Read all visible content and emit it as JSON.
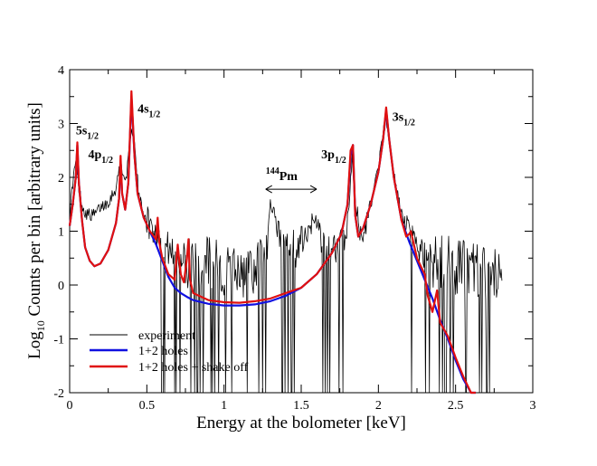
{
  "chart_data": {
    "type": "line",
    "title": "",
    "xlabel": "Energy at the bolometer [keV]",
    "ylabel": {
      "prefix": "Log",
      "sub": "10",
      "rest": " Counts per bin [arbitrary units]"
    },
    "xlim": [
      0,
      3
    ],
    "ylim": [
      -2,
      4
    ],
    "xticks": [
      0,
      0.5,
      1,
      1.5,
      2,
      2.5,
      3
    ],
    "xtick_labels": [
      "0",
      "0.5",
      "1",
      "1.5",
      "2",
      "2.5",
      "3"
    ],
    "yticks": [
      -2,
      -1,
      0,
      1,
      2,
      3,
      4
    ],
    "ytick_labels": [
      "-2",
      "-1",
      "0",
      "1",
      "2",
      "3",
      "4"
    ],
    "grid": false,
    "legend_position": "bottom-left",
    "annotations": [
      {
        "id": "5s12",
        "main": "5s",
        "sub": "1/2",
        "x": 0.04,
        "y": 2.8
      },
      {
        "id": "4p12",
        "main": "4p",
        "sub": "1/2",
        "x": 0.12,
        "y": 2.35
      },
      {
        "id": "4s12",
        "main": "4s",
        "sub": "1/2",
        "x": 0.44,
        "y": 3.2
      },
      {
        "id": "3p12",
        "main": "3p",
        "sub": "1/2",
        "x": 1.63,
        "y": 2.35
      },
      {
        "id": "3s12",
        "main": "3s",
        "sub": "1/2",
        "x": 2.09,
        "y": 3.05
      },
      {
        "id": "pm144",
        "main": "Pm",
        "sup": "144",
        "x": 1.27,
        "y": 1.95,
        "arrow_from": 1.27,
        "arrow_to": 1.6,
        "arrow_y": 1.78
      }
    ],
    "series": [
      {
        "name": "experiment",
        "color": "#000000",
        "style": "noisy-histogram",
        "x": [
          0.0,
          0.02,
          0.04,
          0.06,
          0.08,
          0.1,
          0.13,
          0.16,
          0.2,
          0.25,
          0.3,
          0.33,
          0.36,
          0.38,
          0.4,
          0.42,
          0.45,
          0.5,
          0.55,
          0.6,
          0.65,
          0.7,
          0.75,
          0.8,
          0.85,
          0.9,
          0.95,
          1.0,
          1.05,
          1.1,
          1.15,
          1.2,
          1.25,
          1.28,
          1.3,
          1.33,
          1.36,
          1.4,
          1.45,
          1.5,
          1.55,
          1.58,
          1.62,
          1.66,
          1.7,
          1.74,
          1.78,
          1.81,
          1.83,
          1.86,
          1.9,
          1.95,
          2.0,
          2.03,
          2.05,
          2.08,
          2.12,
          2.16,
          2.2,
          2.25,
          2.3,
          2.35,
          2.4,
          2.45,
          2.5,
          2.55,
          2.6,
          2.65,
          2.7,
          2.75,
          2.8
        ],
        "values": [
          1.3,
          1.9,
          2.3,
          1.8,
          1.5,
          1.35,
          1.3,
          1.3,
          1.45,
          1.55,
          1.8,
          2.3,
          1.9,
          2.3,
          3.0,
          2.6,
          1.6,
          1.2,
          1.0,
          0.8,
          0.65,
          0.55,
          0.5,
          0.45,
          0.4,
          0.35,
          0.3,
          0.2,
          0.15,
          0.2,
          0.25,
          0.3,
          0.45,
          0.7,
          1.55,
          1.3,
          0.9,
          0.7,
          0.5,
          0.8,
          1.1,
          1.3,
          0.9,
          0.7,
          0.6,
          0.7,
          0.9,
          1.4,
          2.4,
          1.2,
          1.0,
          1.5,
          2.2,
          2.8,
          3.15,
          2.4,
          1.7,
          1.2,
          0.9,
          0.7,
          0.6,
          0.5,
          0.45,
          0.4,
          0.35,
          0.3,
          0.3,
          0.25,
          0.2,
          0.25,
          0.3
        ]
      },
      {
        "name": "1+2 holes",
        "color": "#1010e0",
        "style": "line",
        "x": [
          0.0,
          0.02,
          0.04,
          0.05,
          0.06,
          0.08,
          0.1,
          0.13,
          0.16,
          0.2,
          0.25,
          0.3,
          0.32,
          0.33,
          0.34,
          0.36,
          0.38,
          0.4,
          0.42,
          0.44,
          0.48,
          0.52,
          0.56,
          0.6,
          0.64,
          0.68,
          0.72,
          0.76,
          0.8,
          0.9,
          1.0,
          1.1,
          1.2,
          1.3,
          1.4,
          1.5,
          1.6,
          1.7,
          1.76,
          1.8,
          1.82,
          1.835,
          1.85,
          1.87,
          1.9,
          1.95,
          2.0,
          2.03,
          2.05,
          2.07,
          2.1,
          2.15,
          2.2,
          2.25,
          2.3,
          2.35,
          2.4,
          2.45,
          2.5,
          2.55,
          2.6,
          2.63
        ],
        "values": [
          1.1,
          1.5,
          2.0,
          2.6,
          1.9,
          1.2,
          0.7,
          0.45,
          0.35,
          0.4,
          0.65,
          1.15,
          1.6,
          2.3,
          1.7,
          1.4,
          1.9,
          3.5,
          2.4,
          1.7,
          1.25,
          1.0,
          0.75,
          0.45,
          0.15,
          -0.05,
          -0.15,
          -0.22,
          -0.28,
          -0.35,
          -0.38,
          -0.38,
          -0.36,
          -0.3,
          -0.2,
          -0.05,
          0.2,
          0.6,
          0.95,
          1.5,
          2.4,
          2.6,
          1.3,
          0.9,
          1.05,
          1.5,
          2.1,
          2.7,
          3.25,
          2.7,
          2.0,
          1.2,
          0.8,
          0.45,
          0.1,
          -0.25,
          -0.65,
          -1.0,
          -1.4,
          -1.75,
          -2.0,
          -2.0
        ]
      },
      {
        "name": "1+2 holes + shake off",
        "color": "#e01010",
        "style": "line",
        "x": [
          0.0,
          0.02,
          0.04,
          0.05,
          0.06,
          0.08,
          0.1,
          0.13,
          0.16,
          0.2,
          0.25,
          0.3,
          0.32,
          0.33,
          0.34,
          0.36,
          0.38,
          0.4,
          0.42,
          0.44,
          0.48,
          0.52,
          0.56,
          0.57,
          0.58,
          0.6,
          0.64,
          0.68,
          0.7,
          0.71,
          0.72,
          0.74,
          0.76,
          0.77,
          0.78,
          0.8,
          0.9,
          1.0,
          1.1,
          1.2,
          1.3,
          1.4,
          1.5,
          1.6,
          1.7,
          1.76,
          1.8,
          1.82,
          1.835,
          1.85,
          1.87,
          1.9,
          1.95,
          2.0,
          2.03,
          2.05,
          2.07,
          2.1,
          2.15,
          2.18,
          2.2,
          2.21,
          2.25,
          2.3,
          2.32,
          2.35,
          2.38,
          2.4,
          2.45,
          2.5,
          2.55,
          2.6,
          2.63
        ],
        "values": [
          1.1,
          1.5,
          2.0,
          2.65,
          1.9,
          1.2,
          0.7,
          0.45,
          0.35,
          0.4,
          0.65,
          1.15,
          1.6,
          2.4,
          1.7,
          1.4,
          1.9,
          3.6,
          2.4,
          1.7,
          1.25,
          1.0,
          0.85,
          1.25,
          0.8,
          0.5,
          0.2,
          0.1,
          0.75,
          0.45,
          0.2,
          0.05,
          0.5,
          0.85,
          0.1,
          -0.15,
          -0.28,
          -0.32,
          -0.33,
          -0.3,
          -0.25,
          -0.15,
          -0.05,
          0.2,
          0.6,
          0.95,
          1.5,
          2.5,
          2.6,
          1.3,
          0.9,
          1.05,
          1.5,
          2.1,
          2.7,
          3.3,
          2.7,
          2.0,
          1.2,
          0.9,
          0.95,
          1.0,
          0.5,
          0.2,
          -0.2,
          -0.5,
          -0.1,
          -0.7,
          -0.95,
          -1.35,
          -1.7,
          -2.0,
          -2.0
        ]
      }
    ]
  }
}
